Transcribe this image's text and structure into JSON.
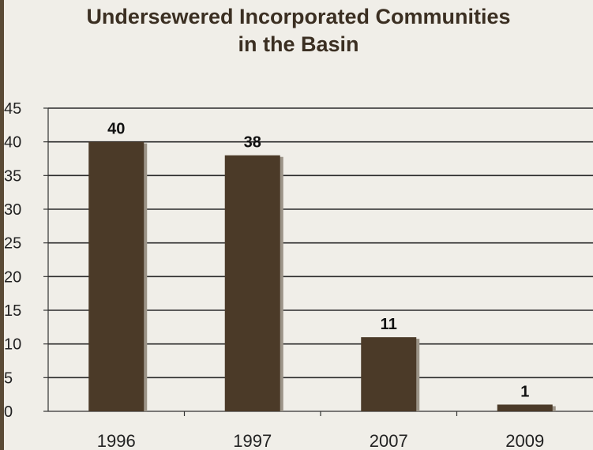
{
  "chart_data": {
    "type": "bar",
    "title_lines": [
      "Undersewered Incorporated Communities",
      "in the Basin"
    ],
    "categories": [
      "1996",
      "1997",
      "2007",
      "2009"
    ],
    "values": [
      40,
      38,
      11,
      1
    ],
    "data_labels": [
      "40",
      "38",
      "11",
      "1"
    ],
    "y_ticks": [
      "0",
      "5",
      "10",
      "15",
      "20",
      "25",
      "30",
      "35",
      "40",
      "45"
    ],
    "ylim": [
      0,
      45
    ],
    "xlabel": "",
    "ylabel": "",
    "grid": true,
    "legend": "none",
    "bar_color": "#4b3a28",
    "bar_shadow_color": "#9c9488",
    "frame_color": "#5a4a35",
    "background_color": "#f0eee8"
  }
}
